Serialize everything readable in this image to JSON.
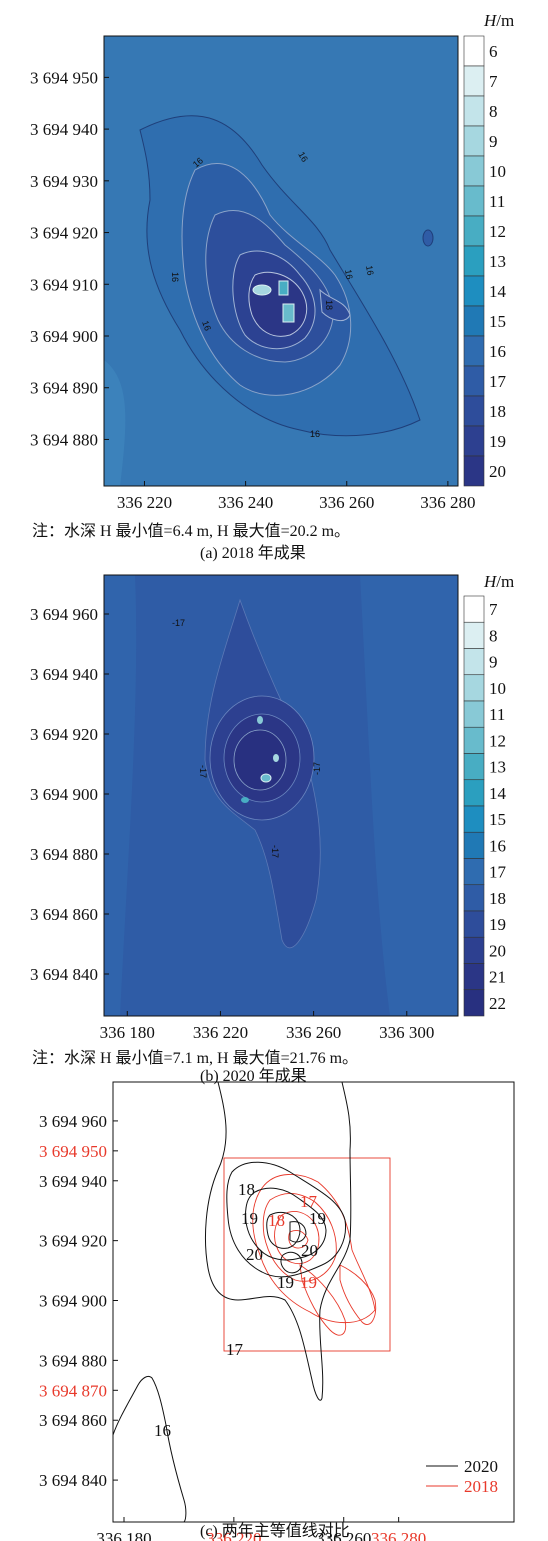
{
  "chart_data": [
    {
      "type": "heatmap",
      "panel_label": "(a) 2018 年成果",
      "colorbar_title": "H/m",
      "colorbar_levels": [
        "6",
        "7",
        "8",
        "9",
        "10",
        "11",
        "12",
        "13",
        "14",
        "15",
        "16",
        "17",
        "18",
        "19",
        "20"
      ],
      "colors": [
        "#ffffff",
        "#dceff2",
        "#c3e4ea",
        "#a6d7e0",
        "#88c9d6",
        "#68bbcc",
        "#48adc3",
        "#2b9fbf",
        "#1e8ec0",
        "#2079b5",
        "#2f6cb0",
        "#2f5ca6",
        "#2e4d9b",
        "#2d4090",
        "#2b3686"
      ],
      "x_ticks": [
        "336 220",
        "336 240",
        "336 260",
        "336 280"
      ],
      "y_ticks": [
        "3 694 950",
        "3 694 940",
        "3 694 930",
        "3 694 920",
        "3 694 910",
        "3 694 900",
        "3 694 890",
        "3 694 880"
      ],
      "xlim": [
        336212,
        336282
      ],
      "ylim": [
        3694871,
        3694958
      ],
      "contour_labels": [
        "16",
        "16",
        "16",
        "16",
        "16",
        "16",
        "16",
        "18"
      ],
      "note": "注：水深 H 最小值=6.4 m, H 最大值=20.2 m。"
    },
    {
      "type": "heatmap",
      "panel_label": "(b) 2020 年成果",
      "colorbar_title": "H/m",
      "colorbar_levels": [
        "7",
        "8",
        "9",
        "10",
        "11",
        "12",
        "13",
        "14",
        "15",
        "16",
        "17",
        "18",
        "19",
        "20",
        "21",
        "22"
      ],
      "colors": [
        "#ffffff",
        "#dceff2",
        "#c3e4ea",
        "#a6d7e0",
        "#88c9d6",
        "#68bbcc",
        "#48adc3",
        "#2b9fbf",
        "#1e8ec0",
        "#2079b5",
        "#2f6cb0",
        "#2f5ca6",
        "#2e4d9b",
        "#2d4090",
        "#2b3686",
        "#283080"
      ],
      "x_ticks": [
        "336 180",
        "336 220",
        "336 260",
        "336 300"
      ],
      "y_ticks": [
        "3 694 960",
        "3 694 940",
        "3 694 920",
        "3 694 900",
        "3 694 880",
        "3 694 860",
        "3 694 840"
      ],
      "xlim": [
        336170,
        336322
      ],
      "ylim": [
        3694826,
        3694973
      ],
      "contour_labels": [
        "-17",
        "-17",
        "-17",
        "-17"
      ],
      "note": "注：水深 H 最小值=7.1 m, H 最大值=21.76 m。"
    },
    {
      "type": "line",
      "panel_label": "(c) 两年主等值线对比",
      "x_ticks_black": [
        "336 180",
        "336 260"
      ],
      "x_ticks_red": [
        "336 220",
        "336 280"
      ],
      "y_ticks_black": [
        "3 694 960",
        "3 694 940",
        "3 694 920",
        "3 694 900",
        "3 694 880",
        "3 694 860",
        "3 694 840"
      ],
      "y_ticks_red": [
        "3 694 950",
        "3 694 870"
      ],
      "xlim": [
        336176,
        336322
      ],
      "ylim": [
        3694826,
        3694973
      ],
      "series": [
        {
          "name": "2020",
          "color": "#111111"
        },
        {
          "name": "2018",
          "color": "#e8392b"
        }
      ],
      "contour_labels_2020": [
        "18",
        "19",
        "20",
        "20",
        "19",
        "19",
        "17",
        "16"
      ],
      "contour_labels_2018": [
        "18",
        "17",
        "19"
      ]
    }
  ]
}
